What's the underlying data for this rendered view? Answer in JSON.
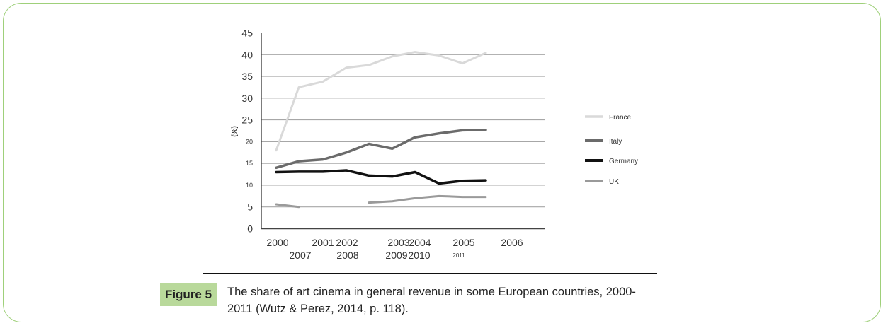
{
  "chart_data": {
    "type": "line",
    "ylabel": "(%)",
    "ylim": [
      0,
      45
    ],
    "y_ticks": [
      "45",
      "40",
      "35",
      "30",
      "25",
      "20",
      "15",
      "10",
      "5",
      "0"
    ],
    "x_tick_labels_row1": [
      "2000",
      "2001",
      "2002",
      "2003",
      "2004",
      "2005",
      "2006"
    ],
    "x_tick_labels_row2": [
      "2007",
      "2008",
      "2009",
      "2010",
      "2011"
    ],
    "x": [
      2000,
      2001,
      2002,
      2003,
      2004,
      2005,
      2006,
      2007,
      2008,
      2009,
      2010,
      2011
    ],
    "grid": true,
    "legend_position": "right",
    "series": [
      {
        "name": "France",
        "color": "#d9d9d9",
        "width": 3,
        "values": [
          18,
          32.5,
          33.8,
          37,
          37.6,
          39.6,
          40.6,
          39.8,
          38,
          40.4,
          null,
          null
        ]
      },
      {
        "name": "Italy",
        "color": "#6b6b6b",
        "width": 3.5,
        "values": [
          14,
          15.5,
          15.9,
          17.5,
          19.5,
          18.4,
          21,
          21.9,
          22.6,
          22.7,
          null,
          null
        ]
      },
      {
        "name": "Germany",
        "color": "#111111",
        "width": 3.5,
        "values": [
          13,
          13.1,
          13.1,
          13.4,
          12.2,
          12,
          13,
          10.4,
          11,
          11.1,
          null,
          null
        ]
      },
      {
        "name": "UK",
        "color": "#9a9a9a",
        "width": 3,
        "values": [
          5.6,
          5,
          null,
          null,
          6,
          6.3,
          7,
          7.5,
          7.3,
          7.3,
          null,
          null
        ]
      }
    ]
  },
  "figure": {
    "label": "Figure 5",
    "caption_line1": "The share of art cinema in general revenue in some European countries, 2000-",
    "caption_line2": "2011 (Wutz & Perez, 2014, p. 118)."
  }
}
